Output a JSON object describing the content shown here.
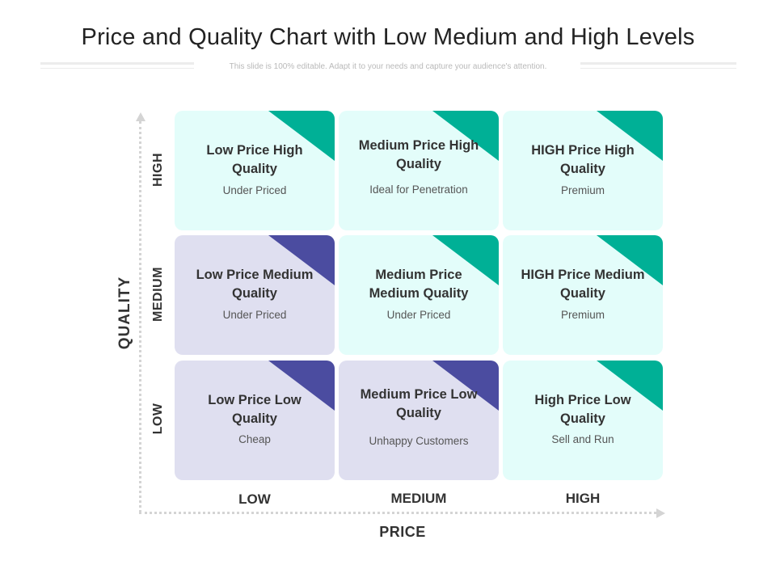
{
  "header": {
    "title": "Price and Quality Chart with Low Medium and High Levels",
    "subtitle": "This slide is 100% editable. Adapt it to your needs and capture your audience's attention."
  },
  "axes": {
    "y_title": "QUALITY",
    "x_title": "PRICE",
    "rows": [
      "HIGH",
      "MEDIUM",
      "LOW"
    ],
    "cols": [
      "LOW",
      "MEDIUM",
      "HIGH"
    ]
  },
  "colors": {
    "teal_fill": "#e3fdfa",
    "teal_accent": "#00b096",
    "purple_fill": "#dfdff0",
    "purple_accent": "#4b4ca0"
  },
  "cells": [
    {
      "title": "Low Price High Quality",
      "desc": "Under Priced",
      "theme": "teal"
    },
    {
      "title": "Medium Price High Quality",
      "desc": "Ideal for Penetration",
      "theme": "teal"
    },
    {
      "title": "HIGH Price High Quality",
      "desc": "Premium",
      "theme": "teal"
    },
    {
      "title": "Low Price Medium Quality",
      "desc": "Under Priced",
      "theme": "purple"
    },
    {
      "title": "Medium Price Medium Quality",
      "desc": "Under Priced",
      "theme": "teal"
    },
    {
      "title": "HIGH Price Medium Quality",
      "desc": "Premium",
      "theme": "teal"
    },
    {
      "title": "Low Price Low Quality",
      "desc": "Cheap",
      "theme": "purple"
    },
    {
      "title": "Medium Price Low Quality",
      "desc": "Unhappy Customers",
      "theme": "purple"
    },
    {
      "title": "High Price Low Quality",
      "desc": "Sell and Run",
      "theme": "teal"
    }
  ]
}
